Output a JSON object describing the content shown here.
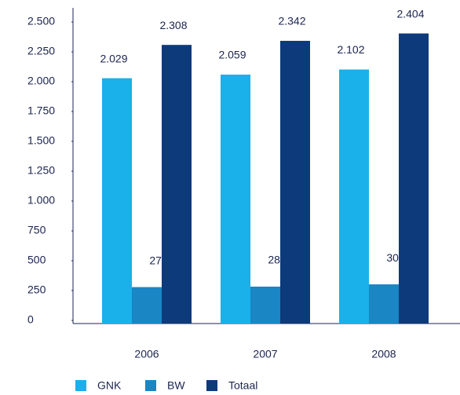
{
  "chart_data": {
    "type": "bar",
    "categories": [
      "2006",
      "2007",
      "2008"
    ],
    "series": [
      {
        "name": "GNK",
        "color": "#1ab0ea",
        "values": [
          2029,
          2059,
          2102
        ],
        "value_labels": [
          "2.029",
          "2.059",
          "2.102"
        ]
      },
      {
        "name": "BW",
        "color": "#1a86c4",
        "values": [
          279,
          283,
          302
        ]
      },
      {
        "name": "Totaal",
        "color": "#0d3a7a",
        "values": [
          2308,
          2342,
          2404
        ],
        "value_labels": [
          "2.308",
          "2.342",
          "2.404"
        ]
      }
    ],
    "ylim": [
      0,
      2500
    ],
    "yticks": [
      0,
      250,
      500,
      750,
      {
        "value": 1000,
        "label": "1.000"
      },
      {
        "value": 1250,
        "label": "1.250"
      },
      {
        "value": 1500,
        "label": "1.500"
      },
      {
        "value": 1750,
        "label": "1.750"
      },
      {
        "value": 2000,
        "label": "2.000"
      },
      {
        "value": 2250,
        "label": "2.250"
      },
      {
        "value": 2500,
        "label": "2.500"
      }
    ]
  }
}
